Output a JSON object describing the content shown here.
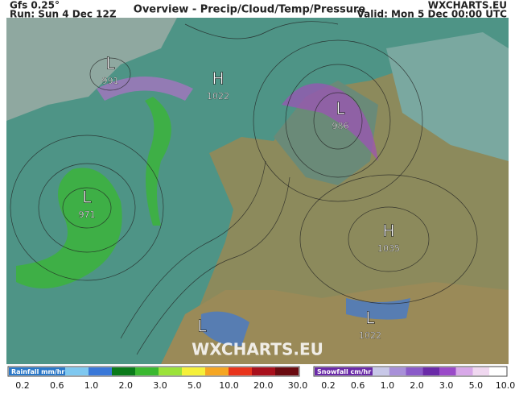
{
  "header": {
    "model": "Gfs 0.25°",
    "run": "Run: Sun 4 Dec 12Z",
    "title": "Overview - Precip/Cloud/Temp/Pressure",
    "brand": "WXCHARTS.EU",
    "valid": "Valid: Mon 5 Dec 00:00 UTC"
  },
  "pressure_centers": [
    {
      "type": "L",
      "value": "991"
    },
    {
      "type": "H",
      "value": "1022"
    },
    {
      "type": "L",
      "value": "986"
    },
    {
      "type": "L",
      "value": "971"
    },
    {
      "type": "H",
      "value": "1035"
    },
    {
      "type": "L"
    },
    {
      "type": "L",
      "value": "1022"
    }
  ],
  "watermark": "WXCHARTS.EU",
  "legend": {
    "rain": {
      "label": "Rainfall mm/hr",
      "ticks": [
        "0.2",
        "0.6",
        "1.0",
        "2.0",
        "3.0",
        "5.0",
        "10.0",
        "20.0",
        "30.0"
      ],
      "colors": [
        "#7fc8f0",
        "#3a78d8",
        "#0a7a1a",
        "#3ab830",
        "#9be23a",
        "#f5f03a",
        "#f5a623",
        "#e8341c",
        "#a8101c",
        "#6a0a10"
      ]
    },
    "snow": {
      "label": "Snowfall cm/hr",
      "ticks": [
        "0.2",
        "0.6",
        "1.0",
        "2.0",
        "3.0",
        "5.0",
        "10.0"
      ],
      "colors": [
        "#c8c8e8",
        "#a890d8",
        "#8a5ac8",
        "#6a2aa8",
        "#9a4ac8",
        "#d8a8e8",
        "#f0d8f0",
        "#ffffff"
      ]
    }
  }
}
